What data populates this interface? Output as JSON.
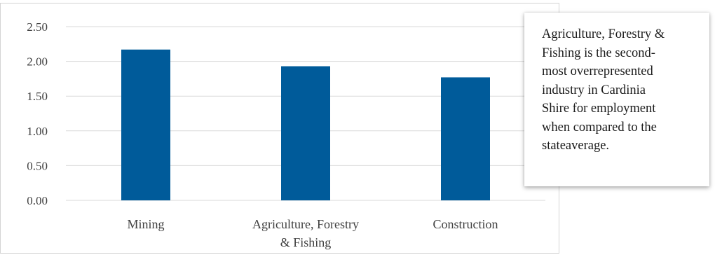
{
  "chart_data": {
    "type": "bar",
    "categories": [
      "Mining",
      "Agriculture, Forestry & Fishing",
      "Construction"
    ],
    "category_label_lines": [
      [
        "Mining"
      ],
      [
        "Agriculture, Forestry",
        "& Fishing"
      ],
      [
        "Construction"
      ]
    ],
    "values": [
      2.17,
      1.93,
      1.77
    ],
    "title": "",
    "xlabel": "",
    "ylabel": "",
    "ylim": [
      0,
      2.5
    ],
    "yticks": [
      "0.00",
      "0.50",
      "1.00",
      "1.50",
      "2.00",
      "2.50"
    ],
    "grid": true,
    "legend": "none",
    "bar_color": "#005b9a",
    "grid_color": "#d9d9d9"
  },
  "callout": {
    "lines": [
      "Agriculture, Forestry &",
      "Fishing is the second-",
      "most overrepresented",
      "industry in Cardinia",
      "Shire for employment",
      "when compared to the",
      "stateaverage."
    ]
  }
}
